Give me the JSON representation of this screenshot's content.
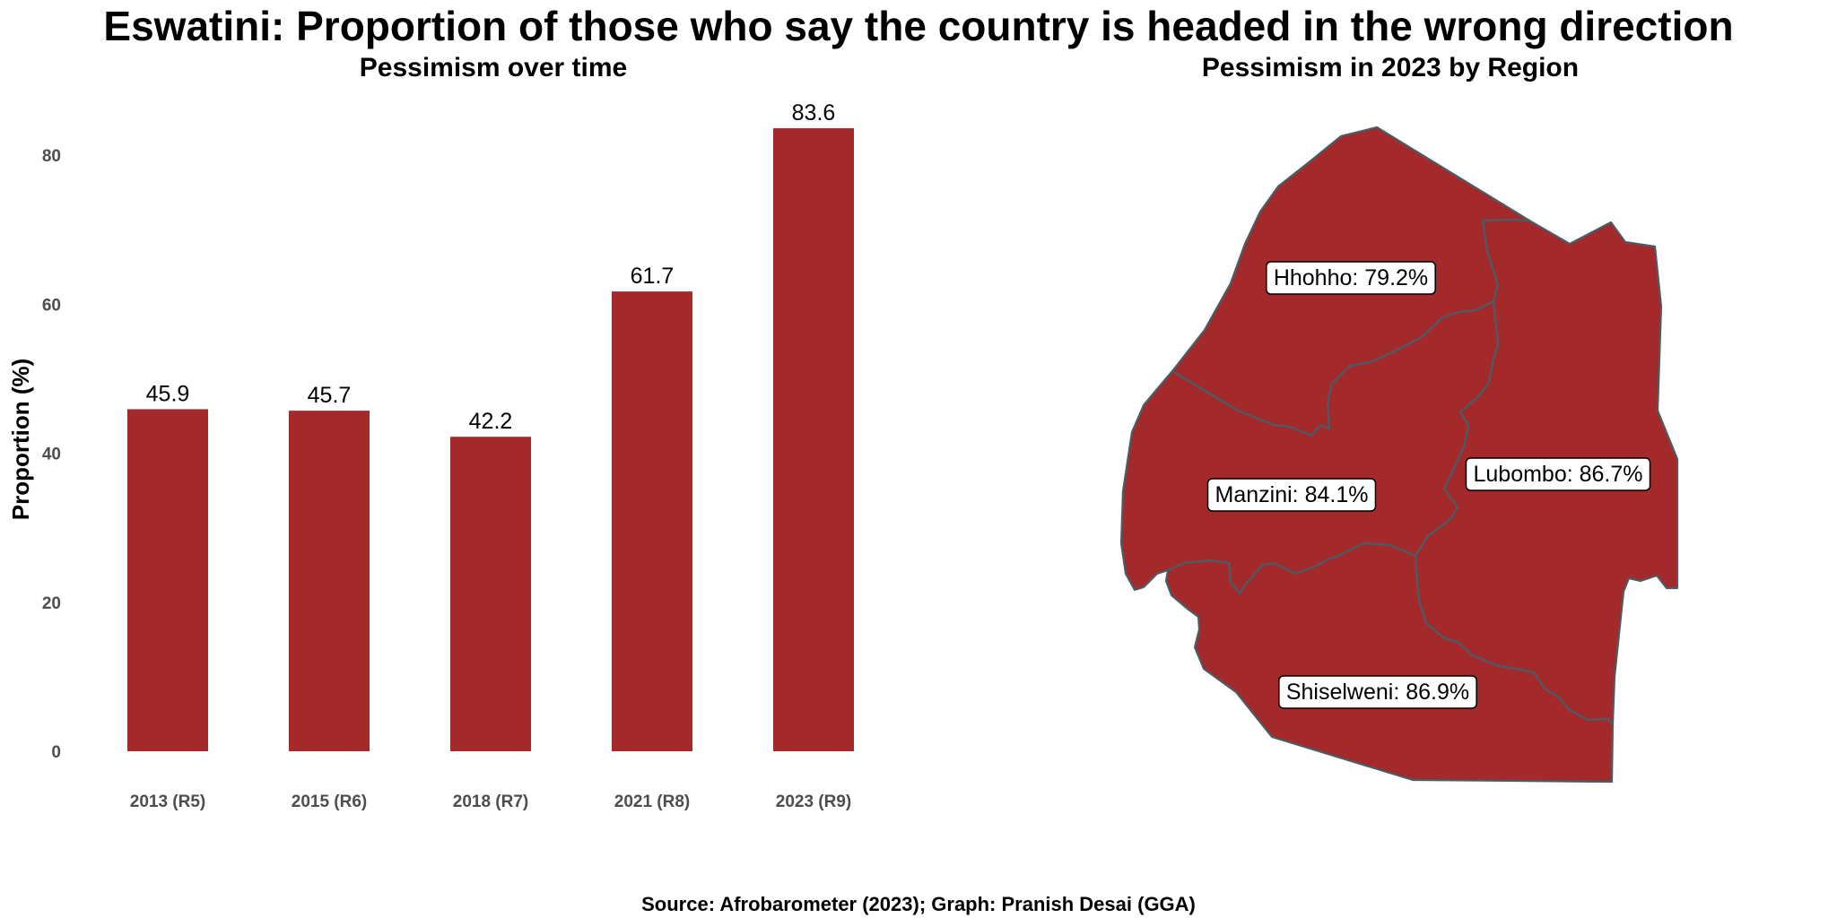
{
  "title": "Eswatini: Proportion of those who say the country is headed in the wrong direction",
  "source": "Source: Afrobarometer (2023); Graph: Pranish Desai (GGA)",
  "colors": {
    "bar": "#a3292b",
    "region_fill": "#a3292b",
    "region_border": "#4a5d66"
  },
  "chart_data": [
    {
      "type": "bar",
      "title": "Pessimism over time",
      "categories": [
        "2013 (R5)",
        "2015 (R6)",
        "2018 (R7)",
        "2021 (R8)",
        "2023 (R9)"
      ],
      "values": [
        45.9,
        45.7,
        42.2,
        61.7,
        83.6
      ],
      "value_labels": [
        "45.9",
        "45.7",
        "42.2",
        "61.7",
        "83.6"
      ],
      "xlabel": "",
      "ylabel": "Proportion (%)",
      "ylim": [
        0,
        85
      ],
      "yticks": [
        0,
        20,
        40,
        60,
        80
      ],
      "grid": false,
      "legend": "none"
    },
    {
      "type": "map",
      "title": "Pessimism in 2023 by Region",
      "regions": [
        {
          "name": "Hhohho",
          "value": 79.2,
          "label": "Hhohho: 79.2%"
        },
        {
          "name": "Lubombo",
          "value": 86.7,
          "label": "Lubombo: 86.7%"
        },
        {
          "name": "Manzini",
          "value": 84.1,
          "label": "Manzini: 84.1%"
        },
        {
          "name": "Shiselweni",
          "value": 86.9,
          "label": "Shiselweni: 86.9%"
        }
      ]
    }
  ]
}
